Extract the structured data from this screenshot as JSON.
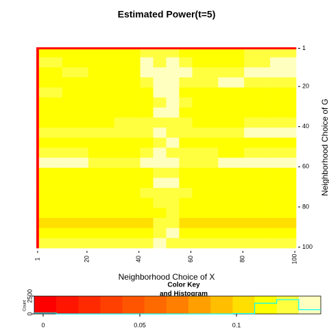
{
  "chart_data": {
    "type": "heatmap",
    "title": "Estimated Power(t=5)",
    "xlabel": "Neighborhood Choice of X",
    "ylabel": "Neighborhood Choice of G",
    "x_edges": [
      0.5,
      1.5,
      10.5,
      20.5,
      30.5,
      40.5,
      45.5,
      50.5,
      55.5,
      60.5,
      70.5,
      80.5,
      90.5,
      100.5
    ],
    "y_edges": [
      0.5,
      1.5,
      5.5,
      10.5,
      15.5,
      20.5,
      25.5,
      30.5,
      35.5,
      40.5,
      45.5,
      50.5,
      55.5,
      60.5,
      65.5,
      70.5,
      75.5,
      80.5,
      85.5,
      90.5,
      95.5,
      100.5
    ],
    "values": [
      [
        0,
        0,
        0,
        0,
        0,
        0,
        0,
        0,
        0,
        0,
        0,
        0,
        0
      ],
      [
        0,
        0.115,
        0.115,
        0.115,
        0.115,
        0.125,
        0.125,
        0.125,
        0.115,
        0.115,
        0.115,
        0.125,
        0.125
      ],
      [
        0,
        0.125,
        0.115,
        0.115,
        0.115,
        0.14,
        0.125,
        0.14,
        0.125,
        0.115,
        0.115,
        0.125,
        0.14
      ],
      [
        0,
        0.115,
        0.125,
        0.115,
        0.115,
        0.14,
        0.14,
        0.14,
        0.14,
        0.125,
        0.125,
        0.14,
        0.14
      ],
      [
        0,
        0.115,
        0.115,
        0.115,
        0.115,
        0.125,
        0.14,
        0.14,
        0.125,
        0.125,
        0.14,
        0.125,
        0.125
      ],
      [
        0,
        0.125,
        0.115,
        0.115,
        0.115,
        0.115,
        0.14,
        0.14,
        0.115,
        0.115,
        0.115,
        0.115,
        0.115
      ],
      [
        0,
        0.115,
        0.115,
        0.115,
        0.115,
        0.115,
        0.125,
        0.14,
        0.125,
        0.115,
        0.115,
        0.115,
        0.115
      ],
      [
        0,
        0.115,
        0.115,
        0.115,
        0.115,
        0.115,
        0.14,
        0.14,
        0.115,
        0.115,
        0.115,
        0.115,
        0.115
      ],
      [
        0,
        0.115,
        0.115,
        0.115,
        0.125,
        0.125,
        0.125,
        0.125,
        0.125,
        0.115,
        0.115,
        0.125,
        0.125
      ],
      [
        0,
        0.125,
        0.125,
        0.125,
        0.125,
        0.125,
        0.14,
        0.125,
        0.125,
        0.125,
        0.125,
        0.14,
        0.14
      ],
      [
        0,
        0.115,
        0.115,
        0.115,
        0.115,
        0.115,
        0.125,
        0.14,
        0.115,
        0.115,
        0.115,
        0.115,
        0.115
      ],
      [
        0,
        0.125,
        0.125,
        0.115,
        0.115,
        0.125,
        0.14,
        0.125,
        0.125,
        0.125,
        0.115,
        0.125,
        0.125
      ],
      [
        0,
        0.14,
        0.14,
        0.125,
        0.125,
        0.14,
        0.14,
        0.14,
        0.125,
        0.125,
        0.14,
        0.14,
        0.14
      ],
      [
        0,
        0.115,
        0.115,
        0.115,
        0.115,
        0.115,
        0.125,
        0.125,
        0.115,
        0.115,
        0.115,
        0.115,
        0.115
      ],
      [
        0,
        0.115,
        0.115,
        0.115,
        0.115,
        0.115,
        0.14,
        0.14,
        0.115,
        0.115,
        0.115,
        0.115,
        0.115
      ],
      [
        0,
        0.115,
        0.115,
        0.115,
        0.115,
        0.125,
        0.125,
        0.125,
        0.125,
        0.115,
        0.115,
        0.115,
        0.115
      ],
      [
        0,
        0.115,
        0.115,
        0.115,
        0.115,
        0.115,
        0.125,
        0.125,
        0.115,
        0.115,
        0.115,
        0.115,
        0.115
      ],
      [
        0,
        0.115,
        0.115,
        0.115,
        0.115,
        0.115,
        0.115,
        0.125,
        0.115,
        0.115,
        0.115,
        0.115,
        0.115
      ],
      [
        0,
        0.105,
        0.105,
        0.105,
        0.105,
        0.105,
        0.125,
        0.125,
        0.105,
        0.105,
        0.105,
        0.105,
        0.105
      ],
      [
        0,
        0.115,
        0.115,
        0.115,
        0.115,
        0.115,
        0.125,
        0.14,
        0.115,
        0.115,
        0.115,
        0.115,
        0.115
      ],
      [
        0,
        0.125,
        0.125,
        0.125,
        0.125,
        0.125,
        0.14,
        0.125,
        0.125,
        0.125,
        0.125,
        0.125,
        0.125
      ]
    ],
    "xlim": [
      0.5,
      100.5
    ],
    "ylim": [
      0.5,
      100.5
    ],
    "xticks": [
      1,
      20,
      40,
      60,
      80,
      100
    ],
    "yticks": [
      1,
      20,
      40,
      60,
      80,
      100
    ],
    "color_key": {
      "title": "Color Key",
      "subtitle": "and Histogram",
      "ylabel": "Count",
      "breaks": [
        -0.0046,
        0.0068,
        0.0182,
        0.0296,
        0.041,
        0.0524,
        0.0638,
        0.0752,
        0.0866,
        0.098,
        0.1094,
        0.1208,
        0.1322,
        0.1436
      ],
      "colors": [
        "#ff0000",
        "#ff1500",
        "#ff2a00",
        "#ff4000",
        "#ff5500",
        "#ff6a00",
        "#ff8000",
        "#ff9f00",
        "#ffbf00",
        "#ffdf00",
        "#ffff00",
        "#ffff40",
        "#ffffbf"
      ],
      "counts": [
        120,
        0,
        0,
        0,
        0,
        0,
        0,
        0,
        0,
        50,
        1500,
        2000,
        600
      ],
      "line_color": "#00ffff",
      "xlim": [
        -0.0046,
        0.1436
      ],
      "xticks": [
        0,
        0.05,
        0.1
      ],
      "ylim": [
        0,
        2500
      ],
      "yticks": [
        0,
        2500
      ]
    }
  }
}
